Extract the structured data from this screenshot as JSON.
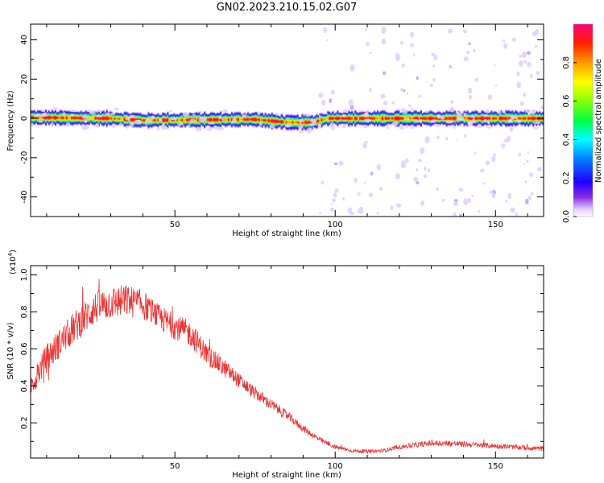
{
  "figure": {
    "title": "GN02.2023.210.15.02.G07"
  },
  "chart_data": [
    {
      "type": "heatmap",
      "xlabel": "Height of straight line (km)",
      "ylabel": "Frequency (Hz)",
      "xlim": [
        5,
        165
      ],
      "ylim": [
        -50,
        48
      ],
      "x_ticks": [
        50,
        100,
        150
      ],
      "y_ticks": [
        -40,
        -20,
        0,
        20,
        40
      ],
      "grid": false,
      "colorbar": {
        "label": "Normalized spectral amplitude",
        "range": [
          0,
          1
        ],
        "ticks": [
          0.0,
          0.2,
          0.4,
          0.6,
          0.8
        ],
        "colormap": [
          "#ffffff",
          "#e8d0ff",
          "#7f00ff",
          "#0000ff",
          "#00ffff",
          "#00ff00",
          "#ffff00",
          "#ff8000",
          "#ff0000",
          "#ff0066"
        ]
      },
      "ridge": {
        "description_points_x": [
          5,
          30,
          40,
          75,
          85,
          93,
          98,
          120,
          140,
          165
        ],
        "frequency_hz": [
          0.5,
          0,
          -1,
          -0.5,
          -2,
          -2,
          0,
          0,
          0,
          0
        ],
        "halfwidth_hz": 2.5
      },
      "noise_region_x": [
        95,
        165
      ],
      "noise_region_y": [
        -50,
        48
      ]
    },
    {
      "type": "line",
      "xlabel": "Height of straight line (km)",
      "ylabel": "SNR (10 * v/v)",
      "y_multiplier": "(x10",
      "y_exponent": "4",
      "y_multiplier_close": ")",
      "xlim": [
        5,
        165
      ],
      "ylim": [
        0.01,
        1.05
      ],
      "x_ticks": [
        50,
        100,
        150
      ],
      "y_ticks": [
        0.2,
        0.4,
        0.6,
        0.8,
        1.0
      ],
      "y_tick_labels": [
        "0.2",
        "0.4",
        "0.6",
        "0.8",
        "1.0"
      ],
      "grid": false,
      "line_color": "#ee3333",
      "envelope": {
        "x": [
          5,
          10,
          15,
          20,
          25,
          30,
          35,
          40,
          45,
          50,
          55,
          60,
          65,
          70,
          75,
          80,
          85,
          90,
          95,
          100,
          105,
          110,
          115,
          120,
          125,
          130,
          135,
          140,
          145,
          150,
          155,
          160,
          165
        ],
        "y": [
          0.4,
          0.55,
          0.65,
          0.74,
          0.82,
          0.85,
          0.86,
          0.84,
          0.77,
          0.72,
          0.68,
          0.57,
          0.5,
          0.43,
          0.36,
          0.3,
          0.24,
          0.17,
          0.11,
          0.07,
          0.05,
          0.045,
          0.05,
          0.07,
          0.08,
          0.09,
          0.09,
          0.085,
          0.08,
          0.075,
          0.07,
          0.065,
          0.06
        ],
        "noise": [
          0.06,
          0.08,
          0.08,
          0.09,
          0.09,
          0.09,
          0.09,
          0.08,
          0.07,
          0.07,
          0.07,
          0.06,
          0.05,
          0.04,
          0.035,
          0.03,
          0.025,
          0.02,
          0.015,
          0.012,
          0.01,
          0.01,
          0.01,
          0.012,
          0.014,
          0.016,
          0.016,
          0.015,
          0.015,
          0.014,
          0.014,
          0.014,
          0.014
        ]
      }
    }
  ]
}
